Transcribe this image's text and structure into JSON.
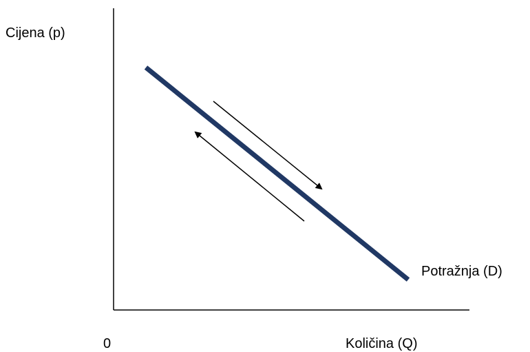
{
  "labels": {
    "y_axis": "Cijena (p)",
    "x_axis": "Količina (Q)",
    "origin": "0",
    "curve": "Potražnja (D)"
  },
  "colors": {
    "curve": "#203864",
    "axes": "#000000",
    "arrows": "#000000"
  }
}
